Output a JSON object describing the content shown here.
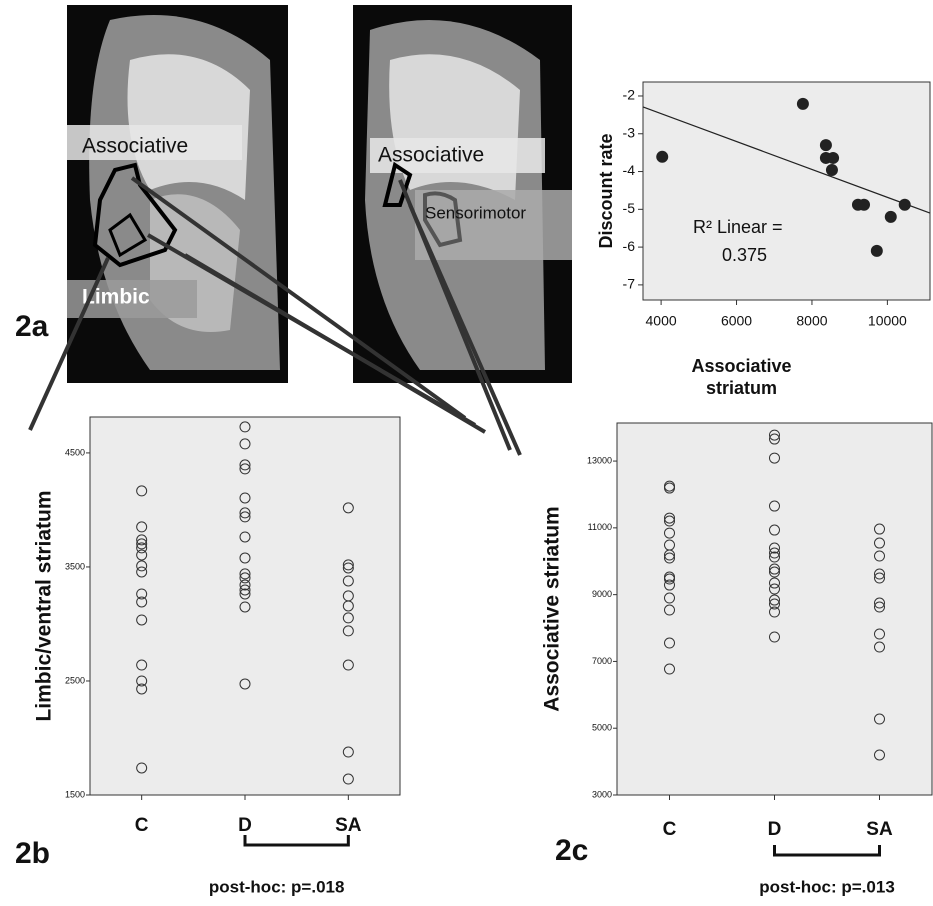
{
  "figure": {
    "panel_labels": [
      "2a",
      "2b",
      "2c"
    ],
    "roi_labels": [
      "Associative",
      "Limbic",
      "Associative",
      "Sensorimotor"
    ]
  },
  "chart_data": [
    {
      "type": "scatter",
      "ylabel": "Discount rate",
      "xlabel": [
        "Associative",
        "striatum"
      ],
      "x": [
        4030,
        7760,
        8370,
        8370,
        8560,
        8530,
        9220,
        9380,
        9720,
        10090,
        10460
      ],
      "values": [
        -3.61,
        -2.21,
        -3.3,
        -3.64,
        -3.64,
        -3.96,
        -4.88,
        -4.88,
        -6.1,
        -5.2,
        -4.88
      ],
      "color": "#222",
      "xlim": [
        3520,
        11130
      ],
      "ylim": [
        -7.4,
        -1.63
      ],
      "xticks": [
        4000,
        6000,
        8000,
        10000
      ],
      "yticks": [
        -2,
        -3,
        -4,
        -5,
        -6,
        -7
      ],
      "fit": {
        "x": [
          3520,
          11130
        ],
        "y": [
          -2.29,
          -5.1
        ]
      },
      "annotation": [
        "R² Linear =",
        "0.375"
      ]
    },
    {
      "type": "strip",
      "ylabel": "Limbic/ventral striatum",
      "categories": [
        "C",
        "D",
        "SA"
      ],
      "values": [
        [
          4167,
          3851,
          3737,
          3702,
          3667,
          3605,
          3509,
          3456,
          3263,
          3193,
          3035,
          2640,
          2500,
          2430,
          1737
        ],
        [
          4728,
          4579,
          4395,
          4360,
          4105,
          3974,
          3939,
          3763,
          3579,
          3439,
          3404,
          3342,
          3298,
          3263,
          3149,
          2474
        ],
        [
          4018,
          3518,
          3491,
          3377,
          3246,
          3158,
          3053,
          2939,
          2640,
          1877,
          1640
        ]
      ],
      "ylim": [
        1500,
        4815
      ],
      "yticks": [
        1500,
        2500,
        3500,
        4500
      ],
      "annotation": "post-hoc: p=.018"
    },
    {
      "type": "strip",
      "ylabel": "Associative striatum",
      "categories": [
        "C",
        "D",
        "SA"
      ],
      "values": [
        [
          12251,
          12192,
          11293,
          11204,
          10844,
          10485,
          10186,
          10096,
          9527,
          9467,
          9287,
          8898,
          8539,
          7551,
          6772
        ],
        [
          13778,
          13659,
          13090,
          11653,
          10934,
          10395,
          10246,
          10126,
          9766,
          9677,
          9347,
          9168,
          8838,
          8719,
          8479,
          7731
        ],
        [
          10964,
          10545,
          10156,
          9617,
          9497,
          8749,
          8629,
          7820,
          7431,
          5275,
          4198
        ]
      ],
      "ylim": [
        3000,
        14140
      ],
      "yticks": [
        3000,
        5000,
        7000,
        9000,
        11000,
        13000
      ],
      "annotation": "post-hoc: p=.013"
    }
  ]
}
